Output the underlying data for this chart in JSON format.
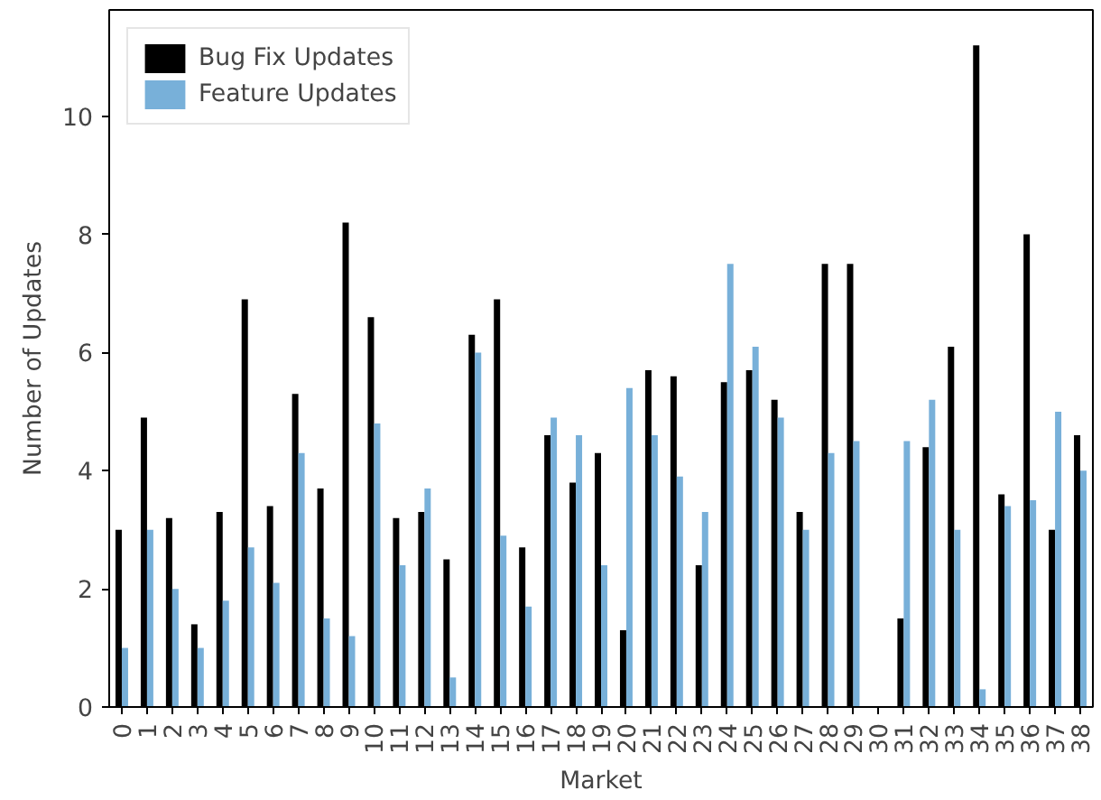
{
  "chart_data": {
    "type": "bar",
    "xlabel": "Market",
    "ylabel": "Number of Updates",
    "categories": [
      "0",
      "1",
      "2",
      "3",
      "4",
      "5",
      "6",
      "7",
      "8",
      "9",
      "10",
      "11",
      "12",
      "13",
      "14",
      "15",
      "16",
      "17",
      "18",
      "19",
      "20",
      "21",
      "22",
      "23",
      "24",
      "25",
      "26",
      "27",
      "28",
      "29",
      "30",
      "31",
      "32",
      "33",
      "34",
      "35",
      "36",
      "37",
      "38"
    ],
    "series": [
      {
        "name": "Bug Fix Updates",
        "color": "#000000",
        "values": [
          3.0,
          4.9,
          3.2,
          1.4,
          3.3,
          6.9,
          3.4,
          5.3,
          3.7,
          8.2,
          6.6,
          3.2,
          3.3,
          2.5,
          6.3,
          6.9,
          2.7,
          4.6,
          3.8,
          4.3,
          1.3,
          5.7,
          5.6,
          2.4,
          5.5,
          5.7,
          5.2,
          3.3,
          7.5,
          7.5,
          0,
          1.5,
          4.4,
          6.1,
          11.2,
          3.6,
          8.0,
          3.0,
          4.6
        ]
      },
      {
        "name": "Feature Updates",
        "color": "#78b0d9",
        "values": [
          1.0,
          3.0,
          2.0,
          1.0,
          1.8,
          2.7,
          2.1,
          4.3,
          1.5,
          1.2,
          4.8,
          2.4,
          3.7,
          0.5,
          6.0,
          2.9,
          1.7,
          4.9,
          4.6,
          2.4,
          5.4,
          4.6,
          3.9,
          3.3,
          7.5,
          6.1,
          4.9,
          3.0,
          4.3,
          4.5,
          0,
          4.5,
          5.2,
          3.0,
          0.3,
          3.4,
          3.5,
          5.0,
          4.0
        ]
      }
    ],
    "ylim": [
      0,
      11.8
    ],
    "yticks": [
      0,
      2,
      4,
      6,
      8,
      10
    ],
    "grid": false,
    "legend": "top left"
  }
}
